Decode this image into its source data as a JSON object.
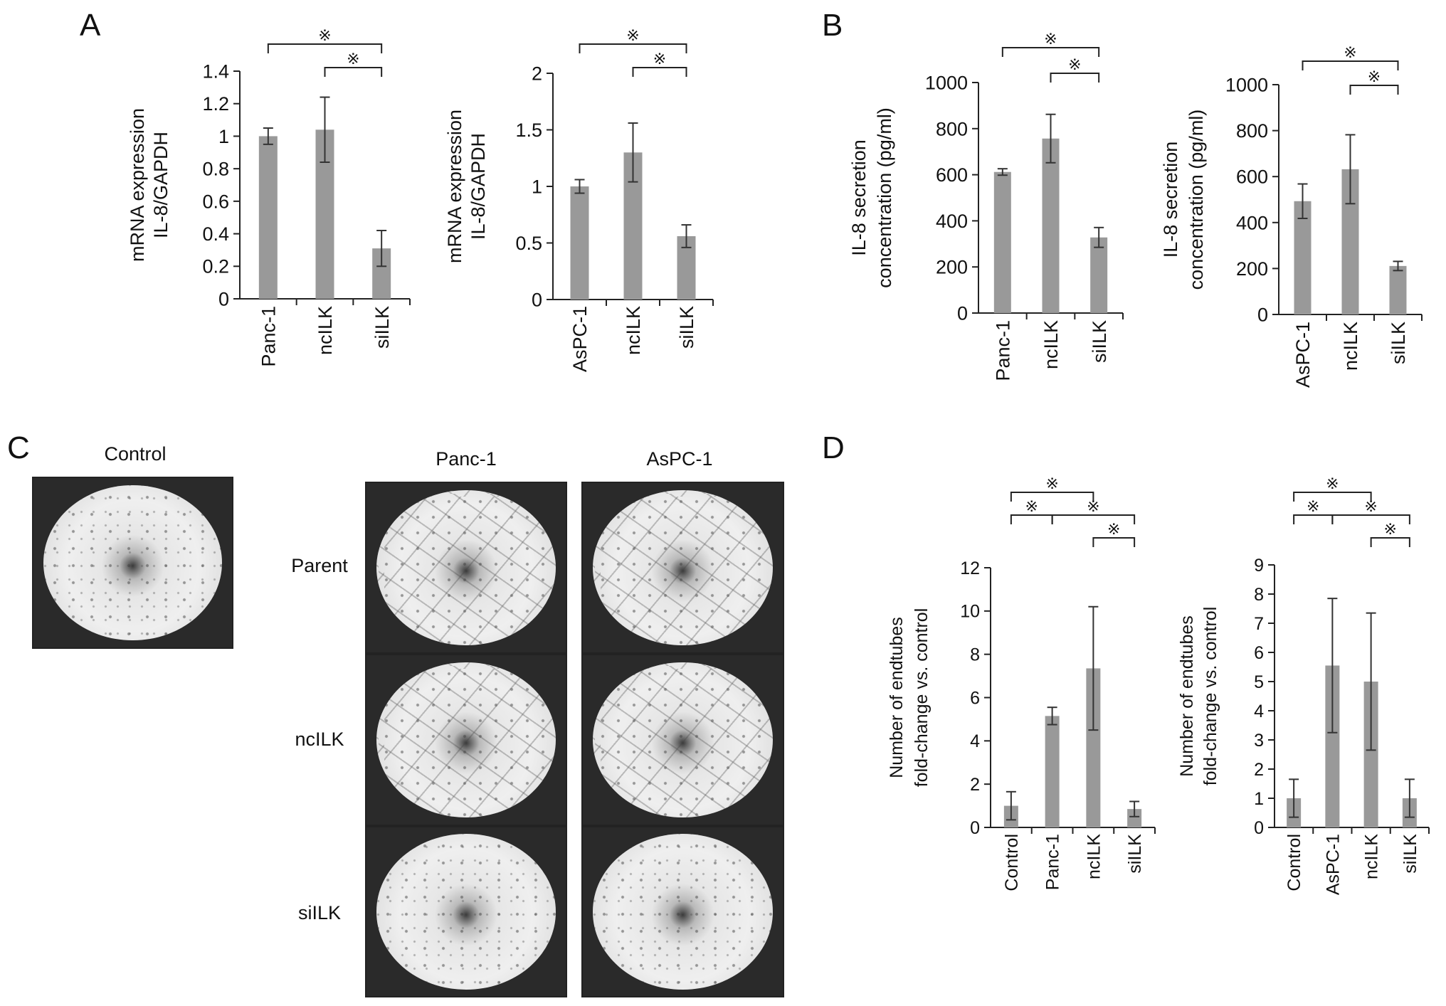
{
  "panels": {
    "letters": [
      "A",
      "B",
      "C",
      "D"
    ],
    "C": {
      "control_label": "Control",
      "column_labels": [
        "Panc-1",
        "AsPC-1"
      ],
      "row_labels": [
        "Parent",
        "ncILK",
        "siILK"
      ]
    }
  },
  "colors": {
    "bar": "#999999",
    "axis": "#222222",
    "text": "#111111"
  },
  "significance_marker": "※",
  "chart_data": [
    {
      "type": "bar",
      "panel": "A",
      "categories": [
        "Panc-1",
        "ncILK",
        "siILK"
      ],
      "values": [
        1.0,
        1.04,
        0.31
      ],
      "errors": [
        0.05,
        0.2,
        0.11
      ],
      "ylabel": [
        "mRNA expression",
        "IL-8/GAPDH"
      ],
      "ylim": [
        0,
        1.4
      ],
      "yticks": [
        "0",
        "0.2",
        "0.4",
        "0.6",
        "0.8",
        "1",
        "1.2",
        "1.4"
      ],
      "significance": [
        [
          0,
          2
        ],
        [
          1,
          2
        ]
      ]
    },
    {
      "type": "bar",
      "panel": "A",
      "categories": [
        "AsPC-1",
        "ncILK",
        "siILK"
      ],
      "values": [
        1.0,
        1.3,
        0.56
      ],
      "errors": [
        0.06,
        0.26,
        0.1
      ],
      "ylabel": [
        "mRNA expression",
        "IL-8/GAPDH"
      ],
      "ylim": [
        0,
        2
      ],
      "yticks": [
        "0",
        "0.5",
        "1",
        "1.5",
        "2"
      ],
      "significance": [
        [
          0,
          2
        ],
        [
          1,
          2
        ]
      ]
    },
    {
      "type": "bar",
      "panel": "B",
      "categories": [
        "Panc-1",
        "ncILK",
        "siILK"
      ],
      "values": [
        612,
        757,
        328
      ],
      "errors": [
        14,
        105,
        43
      ],
      "ylabel": [
        "IL-8 secretion",
        "concentration (pg/ml)"
      ],
      "ylim": [
        0,
        1000
      ],
      "yticks": [
        "0",
        "200",
        "400",
        "600",
        "800",
        "1000"
      ],
      "significance": [
        [
          0,
          2
        ],
        [
          1,
          2
        ]
      ]
    },
    {
      "type": "bar",
      "panel": "B",
      "categories": [
        "AsPC-1",
        "ncILK",
        "siILK"
      ],
      "values": [
        493,
        632,
        211
      ],
      "errors": [
        75,
        150,
        20
      ],
      "ylabel": [
        "IL-8 secretion",
        "concentration (pg/ml)"
      ],
      "ylim": [
        0,
        1000
      ],
      "yticks": [
        "0",
        "200",
        "400",
        "600",
        "800",
        "1000"
      ],
      "significance": [
        [
          0,
          2
        ],
        [
          1,
          2
        ]
      ]
    },
    {
      "type": "bar",
      "panel": "D",
      "categories": [
        "Control",
        "Panc-1",
        "ncILK",
        "siILK"
      ],
      "values": [
        1.0,
        5.15,
        7.35,
        0.85
      ],
      "errors": [
        0.65,
        0.4,
        2.85,
        0.35
      ],
      "ylabel": [
        "Number of endtubes",
        "fold-change vs. control"
      ],
      "ylim": [
        0,
        12
      ],
      "yticks": [
        "0",
        "2",
        "4",
        "6",
        "8",
        "10",
        "12"
      ],
      "significance": [
        [
          0,
          2
        ],
        [
          1,
          3
        ],
        [
          0,
          1
        ],
        [
          2,
          3
        ]
      ]
    },
    {
      "type": "bar",
      "panel": "D",
      "categories": [
        "Control",
        "AsPC-1",
        "ncILK",
        "siILK"
      ],
      "values": [
        1.0,
        5.55,
        5.0,
        1.0
      ],
      "errors": [
        0.65,
        2.3,
        2.35,
        0.65
      ],
      "ylabel": [
        "Number of endtubes",
        "fold-change vs. control"
      ],
      "ylim": [
        0,
        9
      ],
      "yticks": [
        "0",
        "1",
        "2",
        "3",
        "4",
        "5",
        "6",
        "7",
        "8",
        "9"
      ],
      "significance": [
        [
          0,
          2
        ],
        [
          1,
          3
        ],
        [
          0,
          1
        ],
        [
          2,
          3
        ]
      ]
    }
  ]
}
